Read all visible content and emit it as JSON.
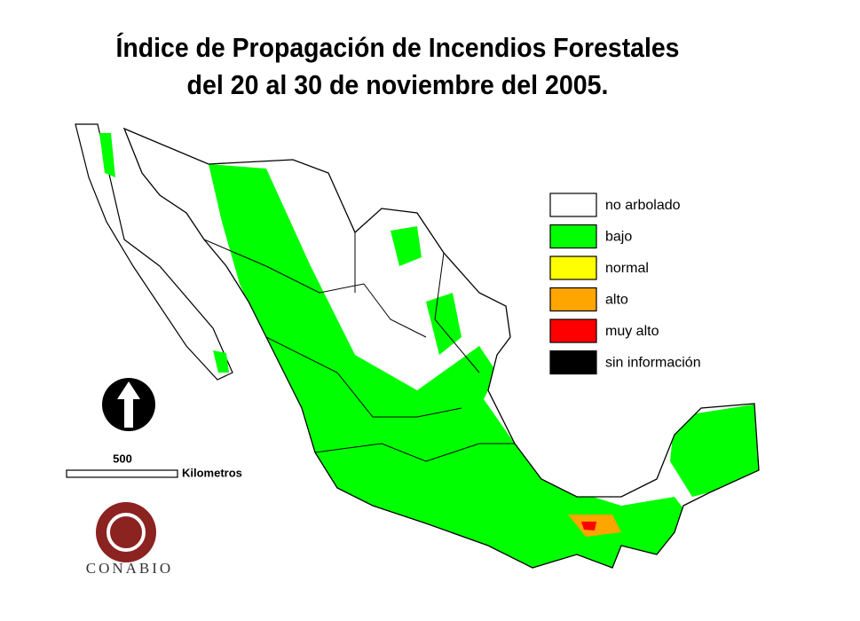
{
  "title": {
    "line1": "Índice de Propagación de Incendios Forestales",
    "line2": "del 20 al 30 de noviembre del 2005."
  },
  "legend": {
    "items": [
      {
        "label": "no arbolado",
        "color": "#ffffff"
      },
      {
        "label": "bajo",
        "color": "#00ff00"
      },
      {
        "label": "normal",
        "color": "#ffff00"
      },
      {
        "label": "alto",
        "color": "#ffa500"
      },
      {
        "label": "muy alto",
        "color": "#ff0000"
      },
      {
        "label": "sin información",
        "color": "#000000"
      }
    ]
  },
  "scale": {
    "distance": 500,
    "unit": "Kilometros"
  },
  "logo": {
    "text": "CONABIO"
  }
}
